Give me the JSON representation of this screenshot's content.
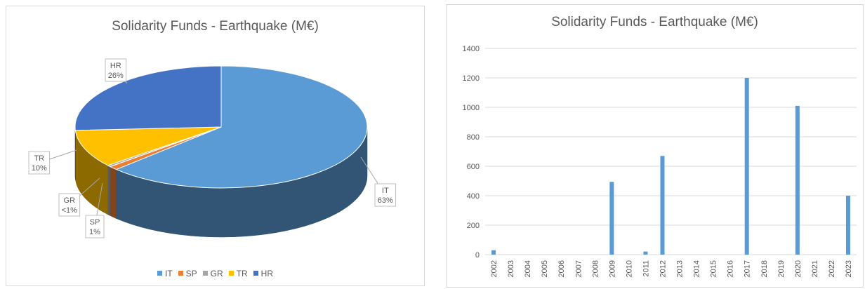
{
  "chart_data": [
    {
      "type": "pie",
      "title": "Solidarity Funds - Earthquake (M€)",
      "categories": [
        "IT",
        "SP",
        "GR",
        "TR",
        "HR"
      ],
      "values": [
        63,
        1,
        0.4,
        10,
        26
      ],
      "data_labels": [
        {
          "category": "IT",
          "text": "63%"
        },
        {
          "category": "SP",
          "text": "1%"
        },
        {
          "category": "GR",
          "text": "<1%"
        },
        {
          "category": "TR",
          "text": "10%"
        },
        {
          "category": "HR",
          "text": "26%"
        }
      ],
      "colors": [
        "#5B9BD5",
        "#ED7D31",
        "#A5A5A5",
        "#FFC000",
        "#4472C4"
      ],
      "legend": "bottom",
      "style": "3d"
    },
    {
      "type": "bar",
      "title": "Solidarity Funds - Earthquake (M€)",
      "categories": [
        "2002",
        "2003",
        "2004",
        "2005",
        "2006",
        "2007",
        "2008",
        "2009",
        "2010",
        "2011",
        "2012",
        "2013",
        "2014",
        "2015",
        "2016",
        "2017",
        "2018",
        "2019",
        "2020",
        "2021",
        "2022",
        "2023"
      ],
      "values": [
        30,
        0,
        0,
        0,
        0,
        0,
        0,
        494,
        0,
        21,
        670,
        0,
        0,
        0,
        0,
        1200,
        0,
        0,
        1010,
        0,
        0,
        400
      ],
      "ylim": [
        0,
        1400
      ],
      "yticks": [
        "0",
        "200",
        "400",
        "600",
        "800",
        "1000",
        "1200",
        "1400"
      ],
      "grid": true,
      "color": "#5B9BD5"
    }
  ]
}
